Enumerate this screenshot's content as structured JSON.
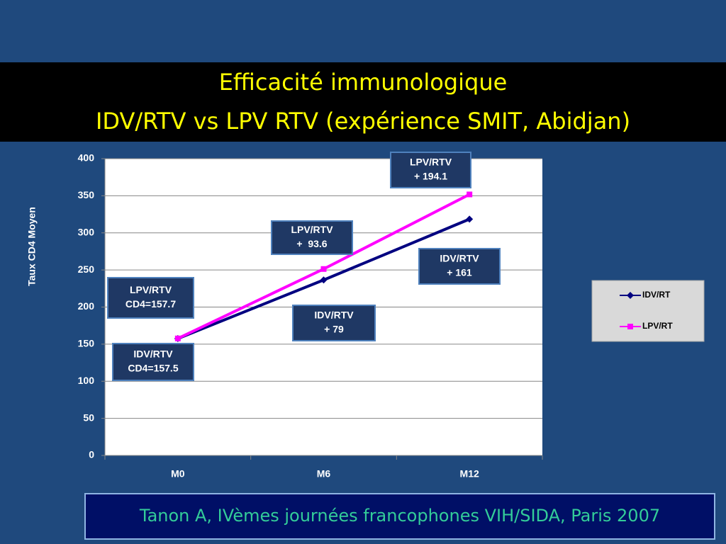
{
  "chart_data": {
    "type": "line",
    "title": "Efficacité immunologique",
    "subtitle": "IDV/RTV vs LPV RTV (expérience SMIT, Abidjan)",
    "y_label": "Taux CD4 Moyen",
    "categories": [
      "M0",
      "M6",
      "M12"
    ],
    "series": [
      {
        "name": "IDV/RT",
        "color": "#000080",
        "marker": "diamond",
        "values": [
          157.5,
          236.5,
          318.5
        ]
      },
      {
        "name": "LPV/RT",
        "color": "#ff00ff",
        "marker": "square",
        "values": [
          157.7,
          251.3,
          351.8
        ]
      }
    ],
    "ylim": [
      0,
      400
    ],
    "yticks": [
      0,
      50,
      100,
      150,
      200,
      250,
      300,
      350,
      400
    ],
    "grid": true,
    "legend": "right",
    "annotations": [
      {
        "lines": [
          "LPV/RTV",
          "CD4=157.7"
        ]
      },
      {
        "lines": [
          "IDV/RTV",
          "CD4=157.5"
        ]
      },
      {
        "lines": [
          "LPV/RTV",
          "+  93.6"
        ]
      },
      {
        "lines": [
          "IDV/RTV",
          "+ 79"
        ]
      },
      {
        "lines": [
          "LPV/RTV",
          "+ 194.1"
        ]
      },
      {
        "lines": [
          "IDV/RTV",
          "+ 161"
        ]
      }
    ]
  },
  "footer": "Tanon A, IVèmes journées francophones VIH/SIDA, Paris 2007"
}
